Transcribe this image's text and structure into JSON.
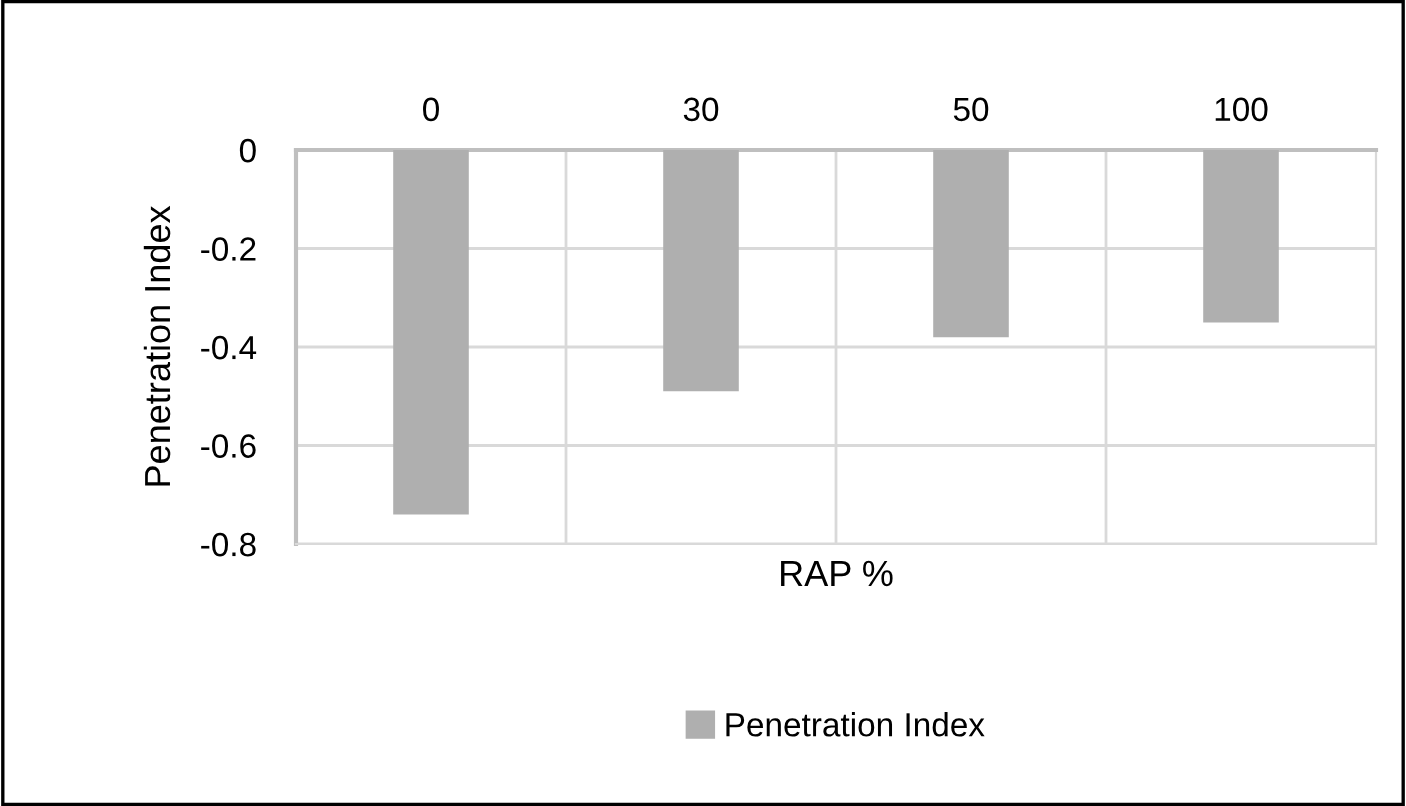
{
  "chart_data": {
    "type": "bar",
    "xlabel": "RAP %",
    "ylabel": "Penetration Index",
    "categories": [
      "0",
      "30",
      "50",
      "100"
    ],
    "series": [
      {
        "name": "Penetration Index",
        "color": "#afafaf",
        "values": [
          -0.74,
          -0.49,
          -0.38,
          -0.35
        ]
      }
    ],
    "ylim": [
      -0.8,
      0
    ],
    "yticks": [
      {
        "value": -0.8,
        "label": "-0.8"
      },
      {
        "value": -0.6,
        "label": "-0.6"
      },
      {
        "value": -0.4,
        "label": "-0.4"
      },
      {
        "value": -0.2,
        "label": "-0.2"
      },
      0
    ],
    "grid": true,
    "legend": "bottom"
  }
}
